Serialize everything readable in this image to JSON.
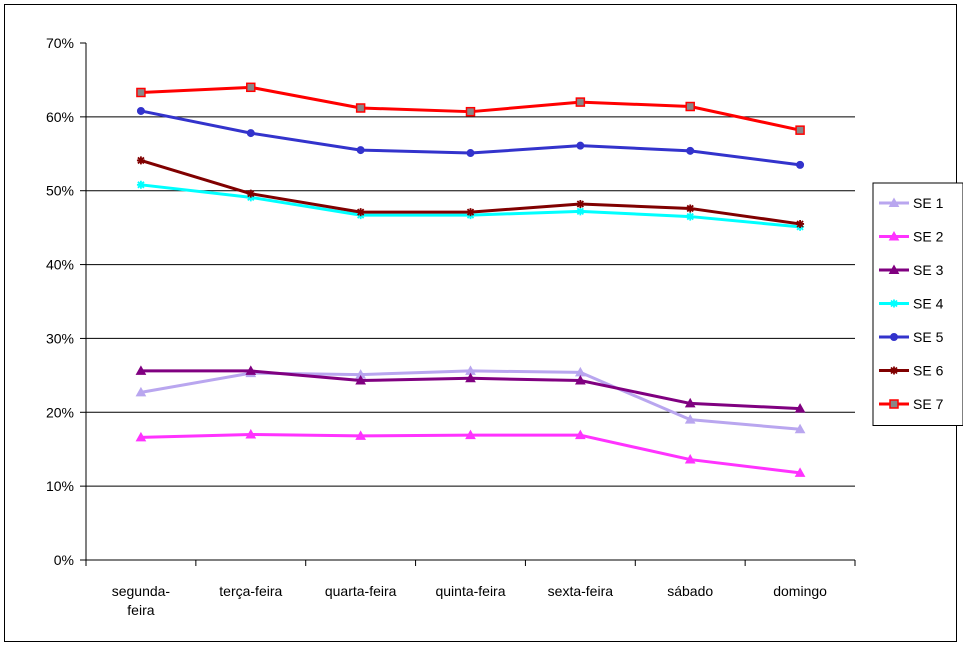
{
  "chart_data": {
    "type": "line",
    "title": "",
    "xlabel": "",
    "ylabel": "",
    "categories": [
      [
        "segunda-",
        "feira"
      ],
      [
        "terça-feira"
      ],
      [
        "quarta-feira"
      ],
      [
        "quinta-feira"
      ],
      [
        "sexta-feira"
      ],
      [
        "sábado"
      ],
      [
        "domingo"
      ]
    ],
    "ylim": [
      0,
      0.7
    ],
    "yticks": [
      {
        "value": 0,
        "label": "0%"
      },
      {
        "value": 0.1,
        "label": "10%"
      },
      {
        "value": 0.2,
        "label": "20%"
      },
      {
        "value": 0.3,
        "label": "30%"
      },
      {
        "value": 0.4,
        "label": "40%"
      },
      {
        "value": 0.5,
        "label": "50%"
      },
      {
        "value": 0.6,
        "label": "60%"
      },
      {
        "value": 0.7,
        "label": "70%"
      }
    ],
    "gridlines": [
      0.1,
      0.2,
      0.3,
      0.4,
      0.5,
      0.6
    ],
    "legend_position": "right",
    "series": [
      {
        "name": "SE 1",
        "color": "#b9a6ef",
        "marker": "triangle",
        "values": [
          0.227,
          0.253,
          0.251,
          0.256,
          0.254,
          0.19,
          0.177
        ]
      },
      {
        "name": "SE 2",
        "color": "#ff33ff",
        "marker": "triangle",
        "values": [
          0.166,
          0.17,
          0.168,
          0.169,
          0.169,
          0.136,
          0.118
        ]
      },
      {
        "name": "SE 3",
        "color": "#800080",
        "marker": "triangle",
        "values": [
          0.256,
          0.256,
          0.243,
          0.246,
          0.243,
          0.212,
          0.205
        ]
      },
      {
        "name": "SE 4",
        "color": "#00ffff",
        "marker": "asterisk",
        "values": [
          0.508,
          0.491,
          0.467,
          0.467,
          0.472,
          0.465,
          0.451
        ]
      },
      {
        "name": "SE 5",
        "color": "#3333cc",
        "marker": "circle",
        "values": [
          0.608,
          0.578,
          0.555,
          0.551,
          0.561,
          0.554,
          0.535
        ]
      },
      {
        "name": "SE 6",
        "color": "#800000",
        "marker": "asterisk",
        "values": [
          0.541,
          0.496,
          0.471,
          0.471,
          0.482,
          0.476,
          0.455
        ]
      },
      {
        "name": "SE 7",
        "color": "#ff0000",
        "marker": "square",
        "values": [
          0.633,
          0.64,
          0.612,
          0.607,
          0.62,
          0.614,
          0.582
        ]
      }
    ]
  }
}
